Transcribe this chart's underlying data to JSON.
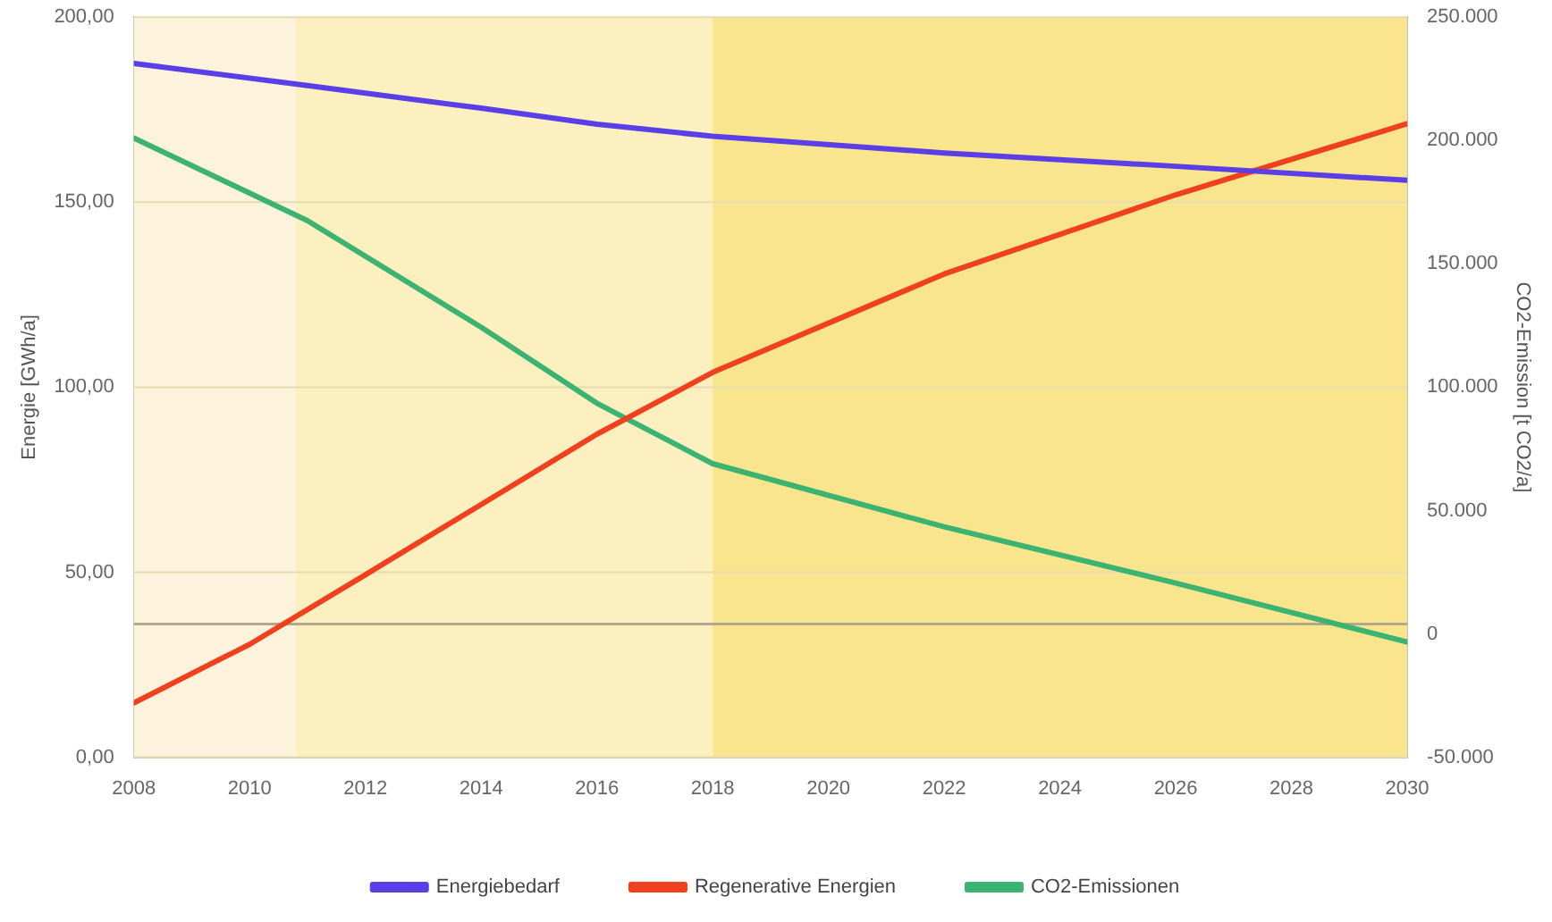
{
  "chart_data": {
    "type": "line",
    "xlabel": null,
    "ylabel": "Energie [GWh/a]",
    "y2label": "CO2-Emission [t CO2/a]",
    "xlim": [
      2008,
      2030
    ],
    "xticks": [
      2008,
      2010,
      2012,
      2014,
      2016,
      2018,
      2020,
      2022,
      2024,
      2026,
      2028,
      2030
    ],
    "ylim": [
      0,
      200
    ],
    "yticks": [
      {
        "value": 0,
        "label": "0,00"
      },
      {
        "value": 50,
        "label": "50,00"
      },
      {
        "value": 100,
        "label": "100,00"
      },
      {
        "value": 150,
        "label": "150,00"
      },
      {
        "value": 200,
        "label": "200,00"
      }
    ],
    "y2lim": [
      -50000,
      250000
    ],
    "y2ticks": [
      {
        "value": -50000,
        "label": "-50.000"
      },
      {
        "value": 0,
        "label": "0"
      },
      {
        "value": 50000,
        "label": "50.000"
      },
      {
        "value": 100000,
        "label": "100.000"
      },
      {
        "value": 150000,
        "label": "150.000"
      },
      {
        "value": 200000,
        "label": "200.000"
      },
      {
        "value": 250000,
        "label": "250.000"
      }
    ],
    "series": [
      {
        "name": "Energiebedarf",
        "color": "#5a3fe6",
        "x": [
          2008,
          2011,
          2014,
          2016,
          2018,
          2022,
          2026,
          2030
        ],
        "values": [
          187.5,
          181.5,
          175.4,
          171.1,
          167.8,
          163.3,
          159.7,
          155.9
        ]
      },
      {
        "name": "Regenerative Energien",
        "color": "#f0401e",
        "x": [
          2008,
          2010,
          2012,
          2014,
          2016,
          2018,
          2022,
          2026,
          2030
        ],
        "values": [
          14.7,
          30.5,
          49.3,
          68.3,
          87.3,
          104,
          130.6,
          152,
          171.2
        ]
      },
      {
        "name": "CO2-Emissionen",
        "color": "#3cb371",
        "axis": "y2",
        "x": [
          2008,
          2011,
          2014,
          2016,
          2018,
          2022,
          2026,
          2030
        ],
        "values": [
          201000,
          167500,
          124300,
          93500,
          69000,
          43400,
          20600,
          -3300
        ]
      }
    ],
    "bands": [
      {
        "axis": "x",
        "from": 2008,
        "to": 2010.8,
        "color": "#fdf3dc"
      },
      {
        "axis": "x",
        "from": 2010.8,
        "to": 2018,
        "color": "#fcefc0"
      },
      {
        "axis": "x",
        "from": 2018,
        "to": 2030,
        "color": "#f9e58e"
      }
    ],
    "ref_lines": [
      {
        "axis": "y",
        "value": 36,
        "color": "#b3a98a"
      }
    ],
    "grid": "y",
    "legend": "bottom",
    "marker": "none",
    "line_style": "solid"
  }
}
